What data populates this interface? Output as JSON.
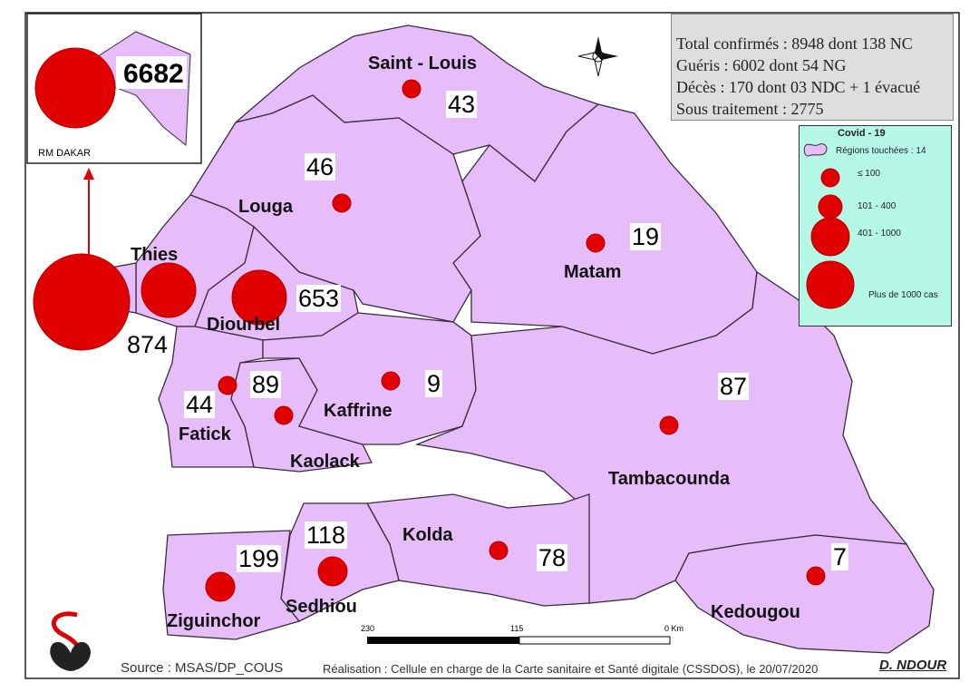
{
  "stats": {
    "line1": "Total confirmés : 8948  dont 138 NC",
    "line2": "Guéris : 6002  dont 54 NG",
    "line3": "Décès : 170 dont 03 NDC + 1 évacué",
    "line4": "Sous traitement : 2775"
  },
  "legend": {
    "title": "Covid - 19",
    "regions": "Régions touchées : 14",
    "classes": [
      "≤ 100",
      "101 - 400",
      "401 - 1000",
      "Plus de 1000 cas"
    ],
    "region_fill": "#e6bdf8",
    "bubble_color": "#e00000",
    "background": "#b6f8e6"
  },
  "inset": {
    "label": "RM DAKAR",
    "cases": "6682"
  },
  "regions": [
    {
      "name": "Saint - Louis",
      "cases": "43"
    },
    {
      "name": "Louga",
      "cases": "46"
    },
    {
      "name": "Matam",
      "cases": "19"
    },
    {
      "name": "Thies",
      "cases": "874"
    },
    {
      "name": "Diourbel",
      "cases": "653"
    },
    {
      "name": "Fatick",
      "cases": "44"
    },
    {
      "name": "Kaolack",
      "cases": "89"
    },
    {
      "name": "Kaffrine",
      "cases": "9"
    },
    {
      "name": "Tambacounda",
      "cases": "87"
    },
    {
      "name": "Kolda",
      "cases": "78"
    },
    {
      "name": "Sedhiou",
      "cases": "118"
    },
    {
      "name": "Ziguinchor",
      "cases": "199"
    },
    {
      "name": "Kedougou",
      "cases": "7"
    }
  ],
  "scale": {
    "left": "230",
    "mid": "115",
    "right": "0 Km"
  },
  "footer": {
    "source": "Source : MSAS/DP_COUS",
    "realisation": "Réalisation : Cellule en charge de la Carte sanitaire et Santé digitale (CSSDOS), le 20/07/2020",
    "author": "D. NDOUR"
  }
}
